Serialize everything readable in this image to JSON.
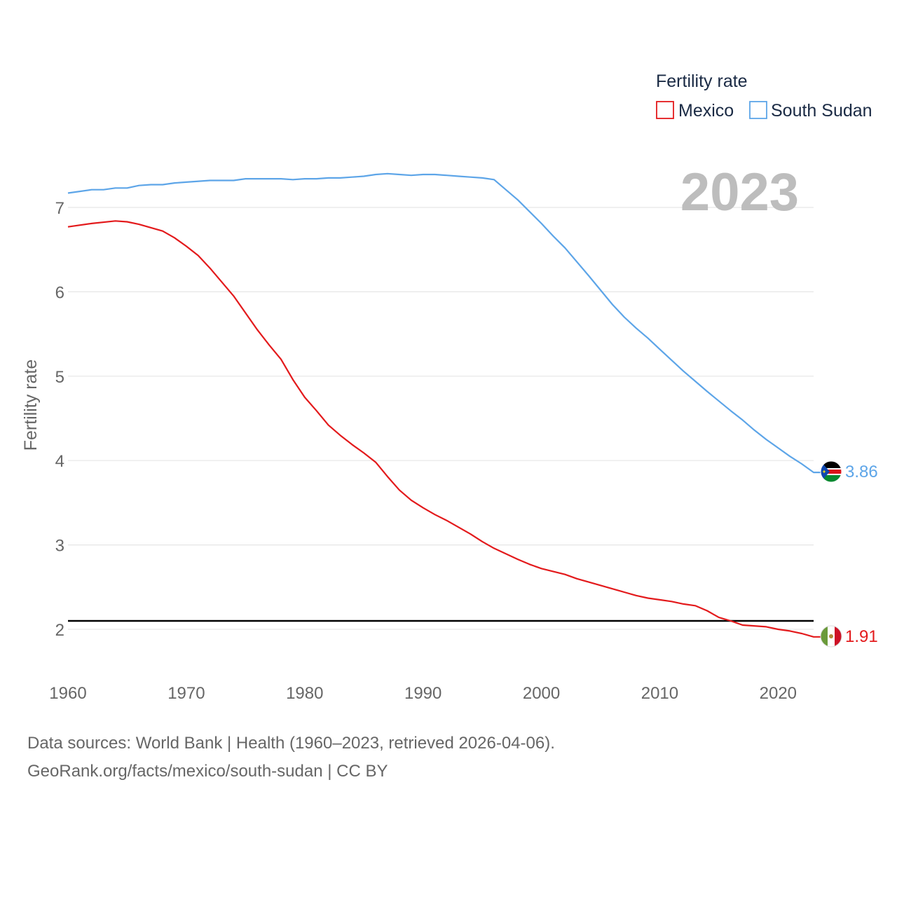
{
  "chart_data": {
    "type": "line",
    "title": "",
    "xlabel": "",
    "ylabel": "Fertility rate",
    "xlim": [
      1960,
      2023
    ],
    "ylim": [
      1.55,
      7.6
    ],
    "xticks": [
      1960,
      1970,
      1980,
      1990,
      2000,
      2010,
      2020
    ],
    "yticks": [
      2,
      3,
      4,
      5,
      6,
      7
    ],
    "grid": true,
    "reference_line": {
      "y": 2.1,
      "color": "#000000"
    },
    "year_label": "2023",
    "legend": {
      "title": "Fertility rate",
      "placement": "top-right"
    },
    "series": [
      {
        "name": "Mexico",
        "color": "#e31a1c",
        "end_label": "1.91",
        "flag": "mexico-flag",
        "x": [
          1960,
          1962,
          1964,
          1965,
          1966,
          1968,
          1969,
          1970,
          1971,
          1972,
          1974,
          1975,
          1976,
          1977,
          1978,
          1979,
          1980,
          1981,
          1982,
          1983,
          1984,
          1985,
          1986,
          1987,
          1988,
          1989,
          1990,
          1991,
          1992,
          1993,
          1994,
          1995,
          1996,
          1998,
          1999,
          2000,
          2002,
          2003,
          2004,
          2006,
          2007,
          2008,
          2009,
          2010,
          2011,
          2012,
          2013,
          2014,
          2015,
          2016,
          2017,
          2019,
          2020,
          2021,
          2022,
          2023
        ],
        "values": [
          6.77,
          6.81,
          6.84,
          6.83,
          6.8,
          6.72,
          6.64,
          6.54,
          6.43,
          6.28,
          5.95,
          5.75,
          5.55,
          5.37,
          5.2,
          4.96,
          4.75,
          4.59,
          4.42,
          4.3,
          4.19,
          4.09,
          3.98,
          3.81,
          3.65,
          3.53,
          3.44,
          3.36,
          3.29,
          3.21,
          3.13,
          3.04,
          2.96,
          2.83,
          2.77,
          2.72,
          2.65,
          2.6,
          2.56,
          2.48,
          2.44,
          2.4,
          2.37,
          2.35,
          2.33,
          2.3,
          2.28,
          2.22,
          2.14,
          2.1,
          2.05,
          2.03,
          2.0,
          1.98,
          1.95,
          1.91
        ]
      },
      {
        "name": "South Sudan",
        "color": "#5da5e8",
        "end_label": "3.86",
        "flag": "south-sudan-flag",
        "x": [
          1960,
          1962,
          1963,
          1964,
          1965,
          1966,
          1967,
          1968,
          1969,
          1970,
          1972,
          1974,
          1975,
          1978,
          1979,
          1980,
          1981,
          1982,
          1983,
          1984,
          1985,
          1986,
          1987,
          1988,
          1989,
          1990,
          1991,
          1992,
          1993,
          1994,
          1995,
          1996,
          1998,
          2000,
          2001,
          2002,
          2004,
          2006,
          2007,
          2008,
          2009,
          2010,
          2012,
          2013,
          2014,
          2016,
          2017,
          2018,
          2019,
          2020,
          2021,
          2022,
          2023
        ],
        "values": [
          7.17,
          7.21,
          7.21,
          7.23,
          7.23,
          7.26,
          7.27,
          7.27,
          7.29,
          7.3,
          7.32,
          7.32,
          7.34,
          7.34,
          7.33,
          7.34,
          7.34,
          7.35,
          7.35,
          7.36,
          7.37,
          7.39,
          7.4,
          7.39,
          7.38,
          7.39,
          7.39,
          7.38,
          7.37,
          7.36,
          7.35,
          7.33,
          7.09,
          6.81,
          6.66,
          6.52,
          6.19,
          5.85,
          5.7,
          5.57,
          5.45,
          5.32,
          5.06,
          4.94,
          4.82,
          4.59,
          4.48,
          4.36,
          4.25,
          4.15,
          4.05,
          3.96,
          3.86
        ]
      }
    ]
  },
  "footer": {
    "source_line1": "Data sources: World Bank | Health (1960–2023, retrieved 2026-04-06).",
    "source_line2": "GeoRank.org/facts/mexico/south-sudan | CC BY"
  }
}
